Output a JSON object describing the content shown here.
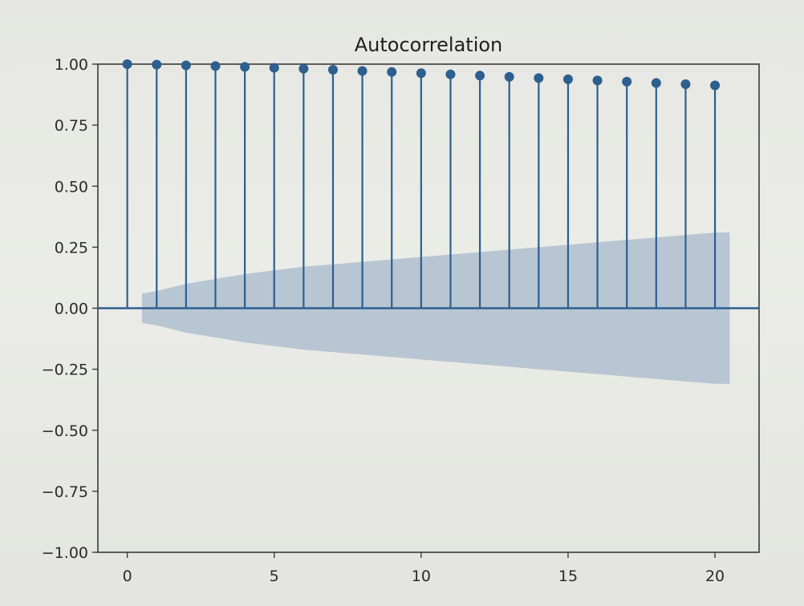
{
  "chart_data": {
    "type": "stem",
    "title": "Autocorrelation",
    "xlabel": "",
    "ylabel": "",
    "x": [
      0,
      1,
      2,
      3,
      4,
      5,
      6,
      7,
      8,
      9,
      10,
      11,
      12,
      13,
      14,
      15,
      16,
      17,
      18,
      19,
      20
    ],
    "series": [
      {
        "values": [
          1.0,
          0.998,
          0.995,
          0.992,
          0.989,
          0.985,
          0.981,
          0.977,
          0.972,
          0.968,
          0.963,
          0.958,
          0.953,
          0.948,
          0.943,
          0.938,
          0.933,
          0.928,
          0.923,
          0.918,
          0.913
        ],
        "color": "#2d5f8f"
      }
    ],
    "confidence_band": {
      "x": [
        0.5,
        1,
        2,
        3,
        4,
        5,
        6,
        7,
        8,
        9,
        10,
        11,
        12,
        13,
        14,
        15,
        16,
        17,
        18,
        19,
        20,
        20.5
      ],
      "upper": [
        0.06,
        0.07,
        0.1,
        0.12,
        0.14,
        0.155,
        0.17,
        0.18,
        0.19,
        0.2,
        0.21,
        0.22,
        0.23,
        0.24,
        0.25,
        0.26,
        0.27,
        0.28,
        0.29,
        0.3,
        0.31,
        0.31
      ],
      "lower": [
        -0.06,
        -0.07,
        -0.1,
        -0.12,
        -0.14,
        -0.155,
        -0.17,
        -0.18,
        -0.19,
        -0.2,
        -0.21,
        -0.22,
        -0.23,
        -0.24,
        -0.25,
        -0.26,
        -0.27,
        -0.28,
        -0.29,
        -0.3,
        -0.31,
        -0.31
      ],
      "color": "#b2c1cf"
    },
    "xlim": [
      -1,
      21.5
    ],
    "ylim": [
      -1.0,
      1.0
    ],
    "x_ticks": [
      0,
      5,
      10,
      15,
      20
    ],
    "x_tick_labels": [
      "0",
      "5",
      "10",
      "15",
      "20"
    ],
    "y_ticks": [
      1.0,
      0.75,
      0.5,
      0.25,
      0.0,
      -0.25,
      -0.5,
      -0.75,
      -1.0
    ],
    "y_tick_labels": [
      "1.00",
      "0.75",
      "0.50",
      "0.25",
      "0.00",
      "−0.25",
      "−0.50",
      "−0.75",
      "−1.00"
    ],
    "grid": false,
    "zero_line_color": "#2d5f8f"
  }
}
